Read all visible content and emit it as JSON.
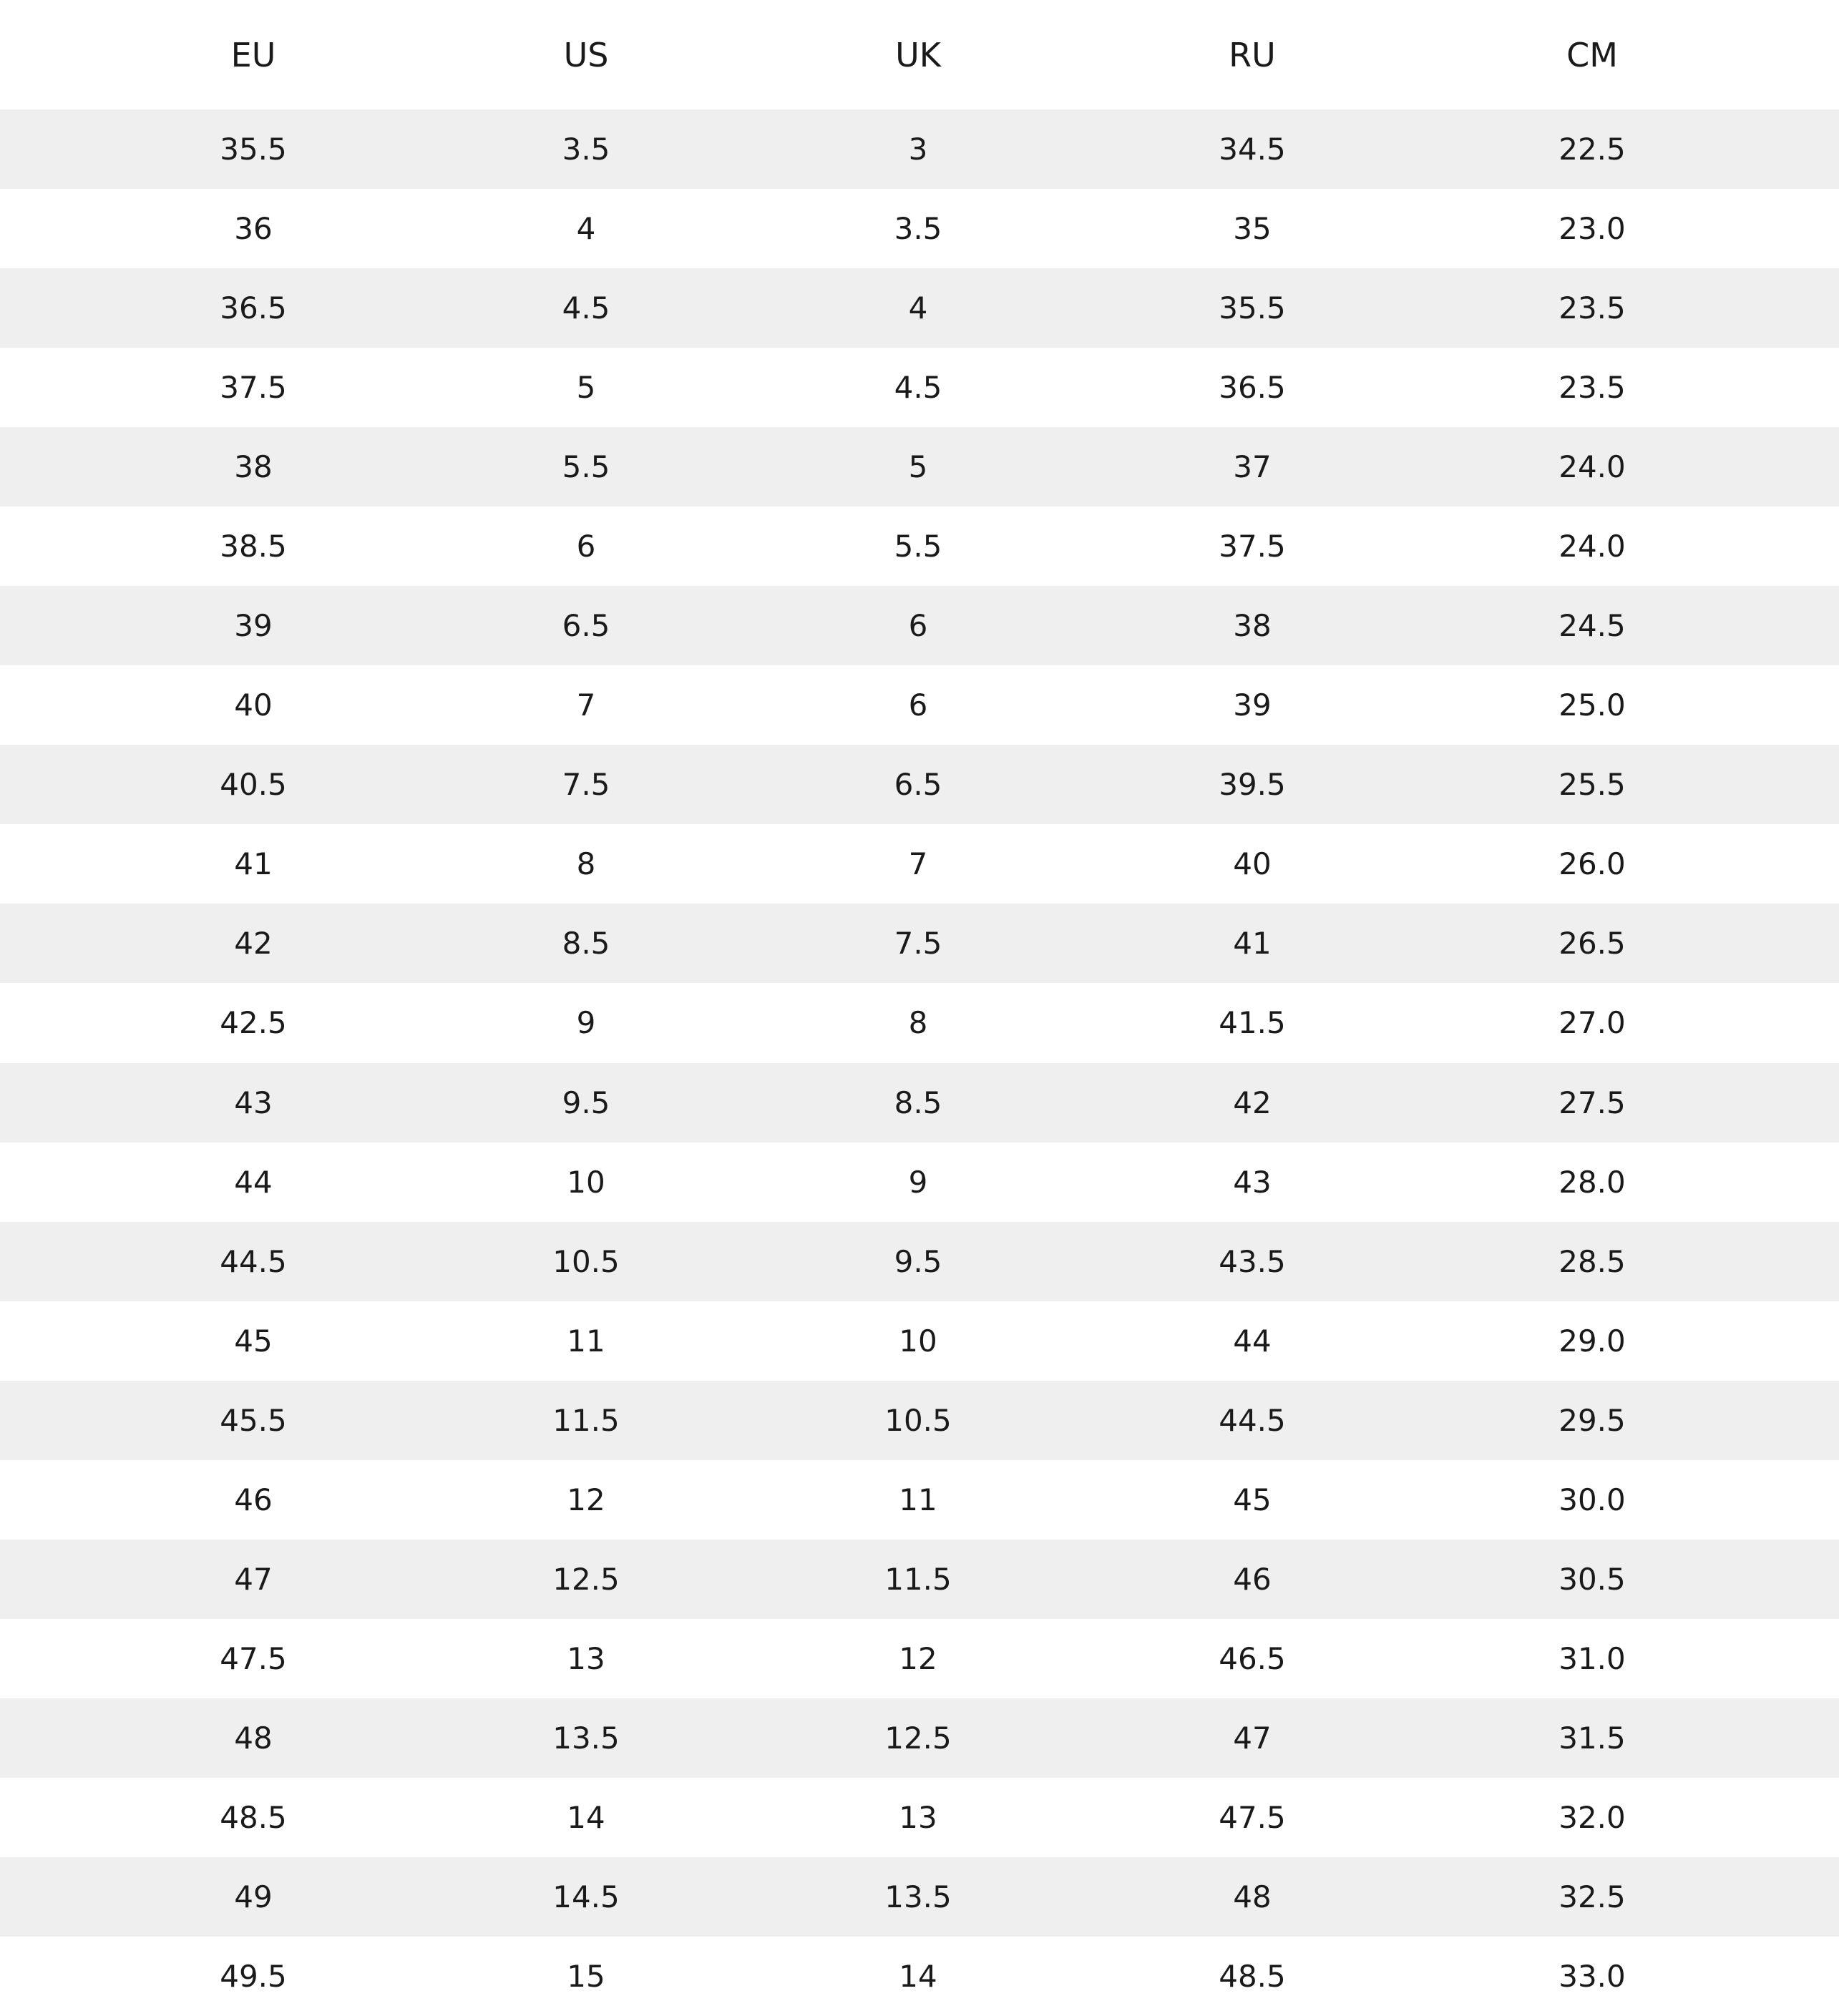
{
  "table": {
    "header": [
      "EU",
      "US",
      "UK",
      "RU",
      "CM"
    ],
    "rows": [
      [
        "35.5",
        "3.5",
        "3",
        "34.5",
        "22.5"
      ],
      [
        "36",
        "4",
        "3.5",
        "35",
        "23.0"
      ],
      [
        "36.5",
        "4.5",
        "4",
        "35.5",
        "23.5"
      ],
      [
        "37.5",
        "5",
        "4.5",
        "36.5",
        "23.5"
      ],
      [
        "38",
        "5.5",
        "5",
        "37",
        "24.0"
      ],
      [
        "38.5",
        "6",
        "5.5",
        "37.5",
        "24.0"
      ],
      [
        "39",
        "6.5",
        "6",
        "38",
        "24.5"
      ],
      [
        "40",
        "7",
        "6",
        "39",
        "25.0"
      ],
      [
        "40.5",
        "7.5",
        "6.5",
        "39.5",
        "25.5"
      ],
      [
        "41",
        "8",
        "7",
        "40",
        "26.0"
      ],
      [
        "42",
        "8.5",
        "7.5",
        "41",
        "26.5"
      ],
      [
        "42.5",
        "9",
        "8",
        "41.5",
        "27.0"
      ],
      [
        "43",
        "9.5",
        "8.5",
        "42",
        "27.5"
      ],
      [
        "44",
        "10",
        "9",
        "43",
        "28.0"
      ],
      [
        "44.5",
        "10.5",
        "9.5",
        "43.5",
        "28.5"
      ],
      [
        "45",
        "11",
        "10",
        "44",
        "29.0"
      ],
      [
        "45.5",
        "11.5",
        "10.5",
        "44.5",
        "29.5"
      ],
      [
        "46",
        "12",
        "11",
        "45",
        "30.0"
      ],
      [
        "47",
        "12.5",
        "11.5",
        "46",
        "30.5"
      ],
      [
        "47.5",
        "13",
        "12",
        "46.5",
        "31.0"
      ],
      [
        "48",
        "13.5",
        "12.5",
        "47",
        "31.5"
      ],
      [
        "48.5",
        "14",
        "13",
        "47.5",
        "32.0"
      ],
      [
        "49",
        "14.5",
        "13.5",
        "48",
        "32.5"
      ],
      [
        "49.5",
        "15",
        "14",
        "48.5",
        "33.0"
      ]
    ]
  }
}
